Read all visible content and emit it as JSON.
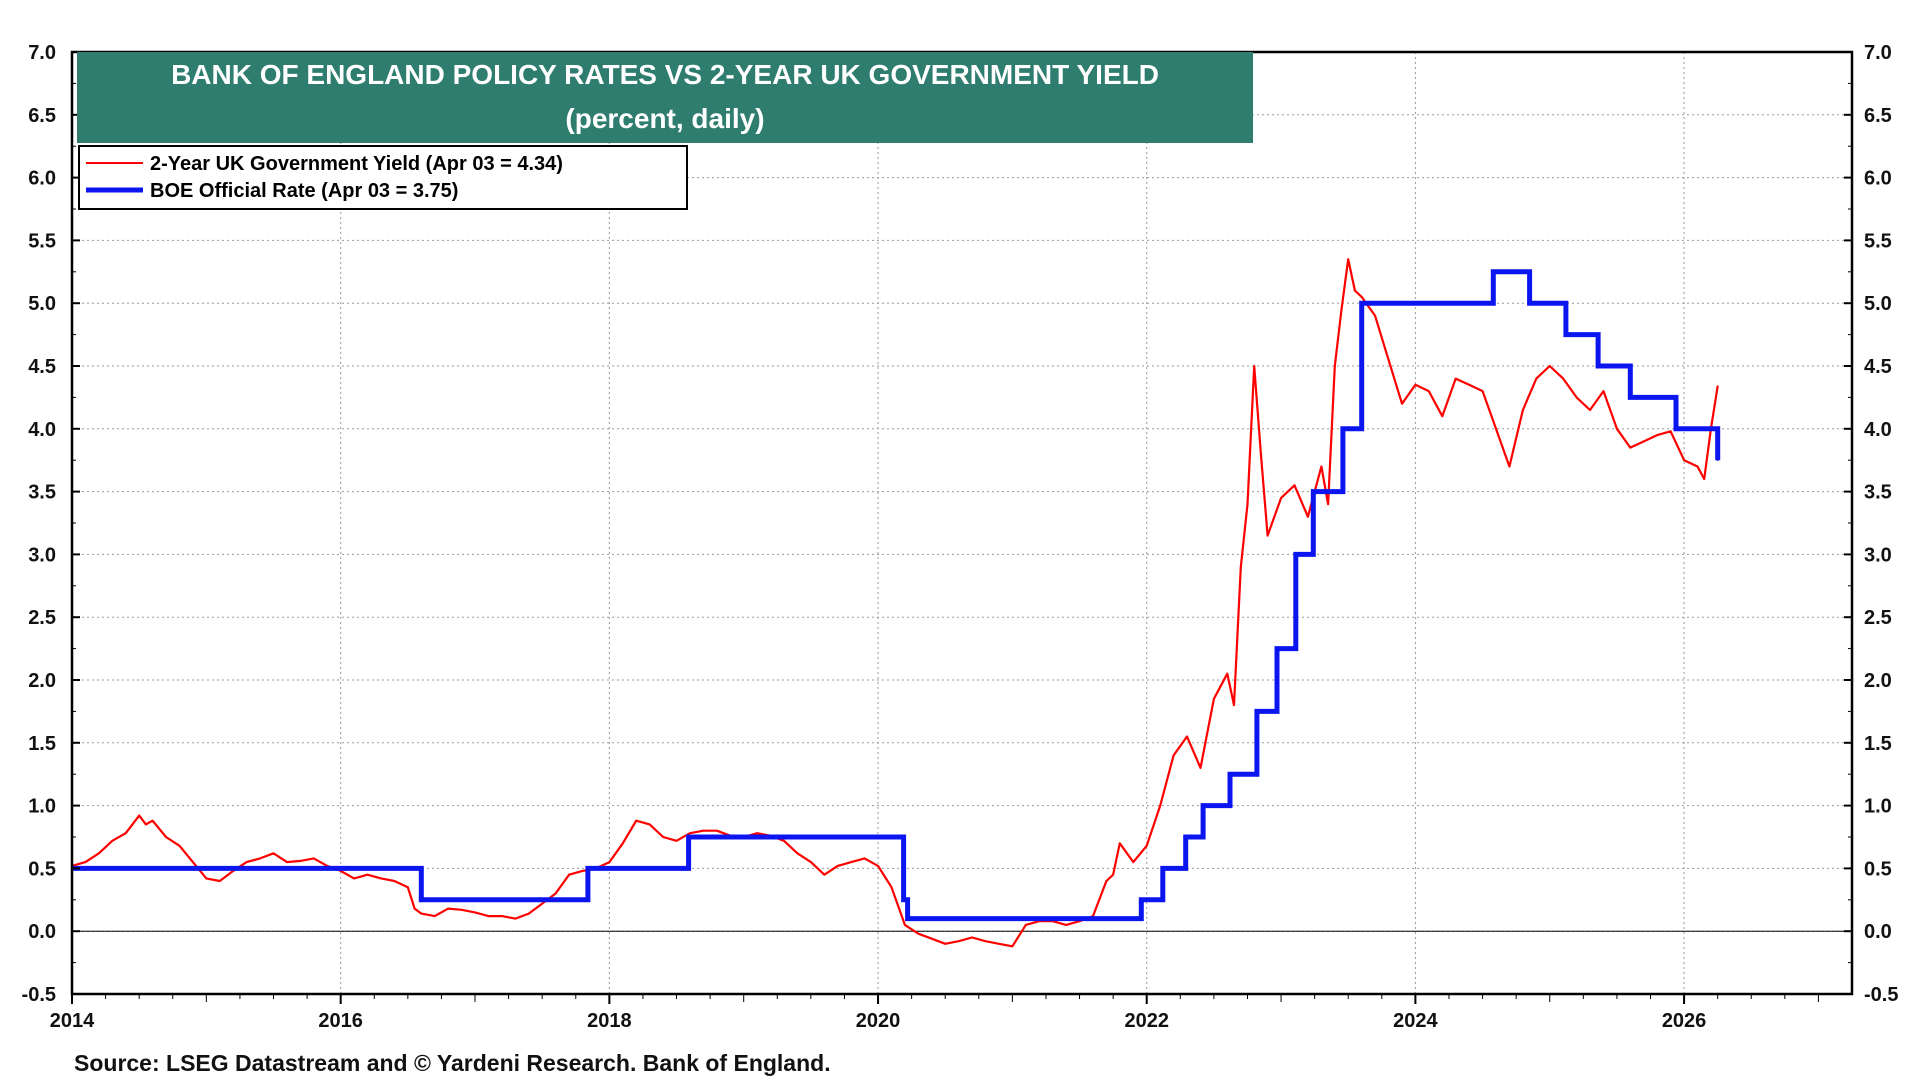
{
  "chart_data": {
    "type": "line",
    "title": "BANK OF ENGLAND POLICY RATES VS 2-YEAR UK GOVERNMENT YIELD",
    "subtitle": "(percent, daily)",
    "ylim": [
      -0.5,
      7.0
    ],
    "xlim": [
      2014.0,
      2027.25
    ],
    "y_ticks": [
      "7.0",
      "6.5",
      "6.0",
      "5.5",
      "5.0",
      "4.5",
      "4.0",
      "3.5",
      "3.0",
      "2.5",
      "2.0",
      "1.5",
      "1.0",
      "0.5",
      "0.0",
      "-0.5"
    ],
    "x_ticks": [
      "2014",
      "2016",
      "2018",
      "2020",
      "2022",
      "2024",
      "2026"
    ],
    "grid": true,
    "legend_position": "top-left",
    "series": [
      {
        "name": "2-Year UK Government Yield (Apr 03 = 4.34)",
        "color": "#ff0000",
        "style": "thin",
        "x": [
          2014.0,
          2014.1,
          2014.2,
          2014.3,
          2014.4,
          2014.5,
          2014.55,
          2014.6,
          2014.7,
          2014.8,
          2014.9,
          2015.0,
          2015.1,
          2015.2,
          2015.3,
          2015.4,
          2015.5,
          2015.6,
          2015.7,
          2015.8,
          2015.9,
          2016.0,
          2016.1,
          2016.2,
          2016.3,
          2016.4,
          2016.5,
          2016.55,
          2016.6,
          2016.7,
          2016.8,
          2016.9,
          2017.0,
          2017.1,
          2017.2,
          2017.3,
          2017.4,
          2017.5,
          2017.6,
          2017.7,
          2017.8,
          2017.9,
          2018.0,
          2018.1,
          2018.2,
          2018.3,
          2018.4,
          2018.5,
          2018.6,
          2018.7,
          2018.8,
          2018.9,
          2019.0,
          2019.1,
          2019.2,
          2019.3,
          2019.4,
          2019.5,
          2019.6,
          2019.7,
          2019.8,
          2019.9,
          2020.0,
          2020.1,
          2020.15,
          2020.2,
          2020.3,
          2020.4,
          2020.5,
          2020.6,
          2020.7,
          2020.8,
          2020.9,
          2021.0,
          2021.1,
          2021.2,
          2021.3,
          2021.4,
          2021.5,
          2021.6,
          2021.7,
          2021.75,
          2021.8,
          2021.9,
          2022.0,
          2022.1,
          2022.2,
          2022.3,
          2022.4,
          2022.5,
          2022.6,
          2022.65,
          2022.7,
          2022.75,
          2022.8,
          2022.85,
          2022.9,
          2023.0,
          2023.1,
          2023.2,
          2023.3,
          2023.35,
          2023.4,
          2023.45,
          2023.5,
          2023.55,
          2023.6,
          2023.7,
          2023.8,
          2023.9,
          2024.0,
          2024.1,
          2024.2,
          2024.3,
          2024.4,
          2024.5,
          2024.6,
          2024.7,
          2024.8,
          2024.9,
          2025.0,
          2025.1,
          2025.2,
          2025.3,
          2025.4,
          2025.5,
          2025.6,
          2025.7,
          2025.8,
          2025.9,
          2026.0,
          2026.1,
          2026.15,
          2026.2,
          2026.25
        ],
        "y": [
          0.52,
          0.55,
          0.62,
          0.72,
          0.78,
          0.92,
          0.85,
          0.88,
          0.75,
          0.68,
          0.55,
          0.42,
          0.4,
          0.48,
          0.55,
          0.58,
          0.62,
          0.55,
          0.56,
          0.58,
          0.52,
          0.48,
          0.42,
          0.45,
          0.42,
          0.4,
          0.35,
          0.18,
          0.14,
          0.12,
          0.18,
          0.17,
          0.15,
          0.12,
          0.12,
          0.1,
          0.14,
          0.22,
          0.3,
          0.45,
          0.48,
          0.5,
          0.55,
          0.7,
          0.88,
          0.85,
          0.75,
          0.72,
          0.78,
          0.8,
          0.8,
          0.76,
          0.75,
          0.78,
          0.76,
          0.72,
          0.62,
          0.55,
          0.45,
          0.52,
          0.55,
          0.58,
          0.52,
          0.35,
          0.2,
          0.05,
          -0.02,
          -0.06,
          -0.1,
          -0.08,
          -0.05,
          -0.08,
          -0.1,
          -0.12,
          0.05,
          0.08,
          0.08,
          0.05,
          0.08,
          0.12,
          0.4,
          0.45,
          0.7,
          0.55,
          0.68,
          1.0,
          1.4,
          1.55,
          1.3,
          1.85,
          2.05,
          1.8,
          2.9,
          3.4,
          4.5,
          3.8,
          3.15,
          3.45,
          3.55,
          3.3,
          3.7,
          3.4,
          4.5,
          4.95,
          5.35,
          5.1,
          5.05,
          4.9,
          4.55,
          4.2,
          4.35,
          4.3,
          4.1,
          4.4,
          4.35,
          4.3,
          4.0,
          3.7,
          4.15,
          4.4,
          4.5,
          4.4,
          4.25,
          4.15,
          4.3,
          4.0,
          3.85,
          3.9,
          3.95,
          3.98,
          3.75,
          3.7,
          3.6,
          4.0,
          4.34
        ]
      },
      {
        "name": "BOE Official Rate (Apr 03 = 3.75)",
        "color": "#0a15f0",
        "style": "thick",
        "step": true,
        "x": [
          2014.0,
          2016.6,
          2017.84,
          2018.59,
          2020.19,
          2020.22,
          2021.96,
          2022.12,
          2022.29,
          2022.42,
          2022.62,
          2022.82,
          2022.97,
          2023.11,
          2023.24,
          2023.46,
          2023.6,
          2024.58,
          2024.85,
          2025.12,
          2025.36,
          2025.6,
          2025.94,
          2026.25
        ],
        "y": [
          0.5,
          0.25,
          0.5,
          0.75,
          0.25,
          0.1,
          0.25,
          0.5,
          0.75,
          1.0,
          1.25,
          1.75,
          2.25,
          3.0,
          3.5,
          4.0,
          5.0,
          5.25,
          5.0,
          4.75,
          4.5,
          4.25,
          4.0,
          3.75
        ]
      }
    ]
  },
  "source": "Source: LSEG Datastream and © Yardeni Research. Bank of England."
}
